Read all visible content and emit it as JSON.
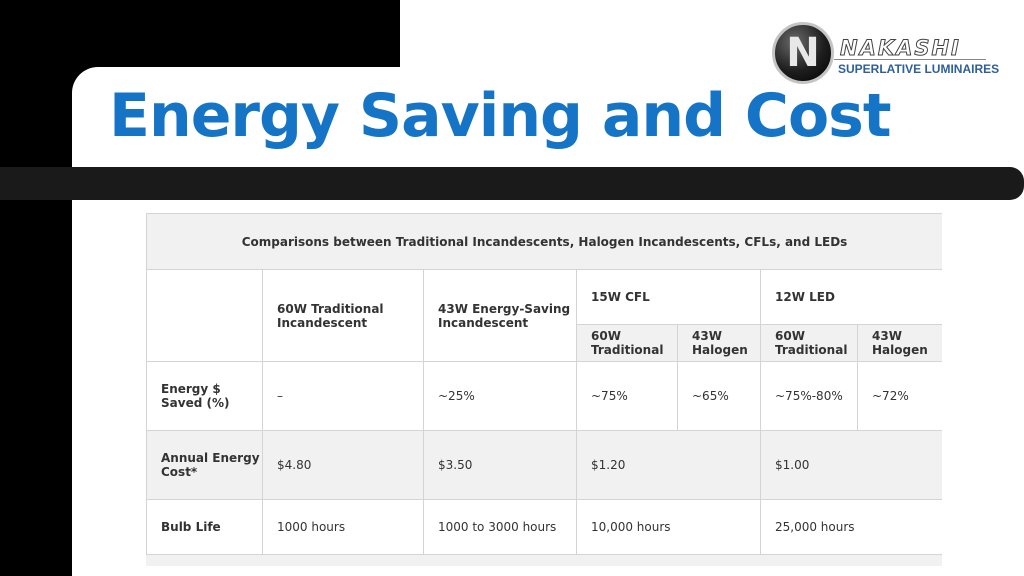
{
  "title": "Energy Saving and Cost",
  "logo": {
    "letter": "N",
    "wordmark": "NAKASHI",
    "tagline": "SUPERLATIVE LUMINAIRES"
  },
  "table": {
    "caption": "Comparisons between Traditional Incandescents, Halogen Incandescents, CFLs, and LEDs",
    "headers": {
      "col1": "60W Traditional Incandescent",
      "col2": "43W Energy-Saving Incandescent",
      "cfl": "15W CFL",
      "led": "12W LED",
      "cfl_sub1": "60W Traditional",
      "cfl_sub2": "43W Halogen",
      "led_sub1": "60W Traditional",
      "led_sub2": "43W Halogen"
    },
    "rows": [
      {
        "label": "Energy $ Saved (%)",
        "c1": "–",
        "c2": "~25%",
        "c3": "~75%",
        "c4": "~65%",
        "c5": "~75%-80%",
        "c6": "~72%"
      },
      {
        "label": "Annual Energy Cost*",
        "c1": "$4.80",
        "c2": "$3.50",
        "cfl": "$1.20",
        "led": "$1.00"
      },
      {
        "label": "Bulb Life",
        "c1": "1000 hours",
        "c2": "1000 to 3000 hours",
        "cfl": "10,000 hours",
        "led": "25,000 hours"
      }
    ]
  },
  "colors": {
    "title": "#1574c6",
    "tagline": "#2d5f9a",
    "table_grey": "#f1f1f1",
    "dark_bar": "#1a1a1a"
  }
}
